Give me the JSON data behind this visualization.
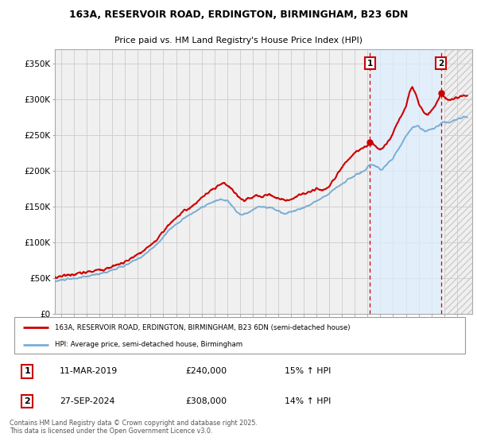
{
  "title_line1": "163A, RESERVOIR ROAD, ERDINGTON, BIRMINGHAM, B23 6DN",
  "title_line2": "Price paid vs. HM Land Registry's House Price Index (HPI)",
  "ylabel_ticks": [
    "£0",
    "£50K",
    "£100K",
    "£150K",
    "£200K",
    "£250K",
    "£300K",
    "£350K"
  ],
  "ytick_values": [
    0,
    50000,
    100000,
    150000,
    200000,
    250000,
    300000,
    350000
  ],
  "ylim": [
    0,
    370000
  ],
  "xlim_start": 1994.5,
  "xlim_end": 2027.2,
  "marker1_x": 2019.19,
  "marker1_y": 240000,
  "marker1_label": "1",
  "marker2_x": 2024.74,
  "marker2_y": 308000,
  "marker2_label": "2",
  "annotation1_date": "11-MAR-2019",
  "annotation1_price": "£240,000",
  "annotation1_hpi": "15% ↑ HPI",
  "annotation2_date": "27-SEP-2024",
  "annotation2_price": "£308,000",
  "annotation2_hpi": "14% ↑ HPI",
  "legend_line1": "163A, RESERVOIR ROAD, ERDINGTON, BIRMINGHAM, B23 6DN (semi-detached house)",
  "legend_line2": "HPI: Average price, semi-detached house, Birmingham",
  "footer": "Contains HM Land Registry data © Crown copyright and database right 2025.\nThis data is licensed under the Open Government Licence v3.0.",
  "red_color": "#cc0000",
  "blue_color": "#7aadd4",
  "highlight_blue": "#ddeeff",
  "grid_color": "#cccccc",
  "bg_color": "#ffffff",
  "plot_bg_color": "#f0f0f0",
  "hatch_color": "#cccccc",
  "future_start": 2025.0
}
